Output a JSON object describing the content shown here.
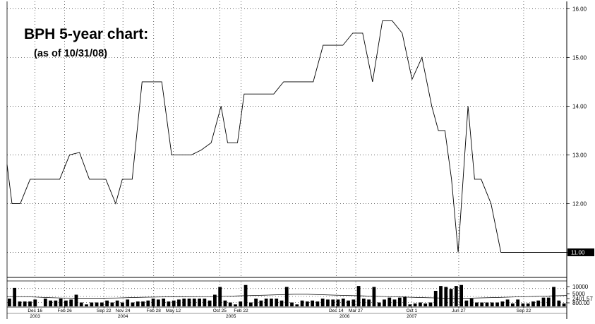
{
  "chart_data": {
    "type": "line",
    "title": "BPH 5-year chart:",
    "subtitle": "(as of 10/31/08)",
    "price": {
      "ylim": [
        10.5,
        16.15
      ],
      "y_ticks": [
        "16.00",
        "15.00",
        "14.00",
        "13.00",
        "12.00",
        "11.00"
      ],
      "last_label": "11.00",
      "x": [
        0,
        1.5,
        4,
        7,
        10,
        13,
        16,
        19,
        22,
        25,
        28,
        30,
        33,
        35,
        38,
        41,
        44,
        47,
        50,
        53,
        56,
        59,
        62,
        65,
        67,
        70,
        72,
        75,
        78,
        81,
        84,
        87,
        90,
        93,
        96,
        99,
        102,
        105,
        108,
        111,
        114,
        117,
        120,
        123,
        126,
        129,
        131,
        133,
        135,
        137,
        140,
        142,
        144,
        147,
        150,
        152,
        154,
        156,
        158,
        160,
        162,
        164,
        166,
        168,
        170
      ],
      "values": [
        12.8,
        12.0,
        12.0,
        12.5,
        12.5,
        12.5,
        12.5,
        13.0,
        13.05,
        12.5,
        12.5,
        12.5,
        12.0,
        12.5,
        12.5,
        14.5,
        14.5,
        14.5,
        13.0,
        13.0,
        13.0,
        13.1,
        13.25,
        14.0,
        13.25,
        13.25,
        14.25,
        14.25,
        14.25,
        14.25,
        14.5,
        14.5,
        14.5,
        14.5,
        15.25,
        15.25,
        15.25,
        15.5,
        15.5,
        14.5,
        15.75,
        15.75,
        15.5,
        14.55,
        15.0,
        14.0,
        13.5,
        13.5,
        12.5,
        11.0,
        14.0,
        12.5,
        12.5,
        12.0,
        11.0,
        11.0,
        11.0,
        11.0,
        11.0,
        11.0,
        11.0,
        11.0,
        11.0,
        11.0,
        11.0
      ],
      "x_max": 170
    },
    "volume": {
      "y_ticks": [
        "10000",
        "5000",
        "2401.57",
        "800.00"
      ],
      "bars": [
        400,
        950,
        250,
        250,
        250,
        350,
        0,
        400,
        300,
        300,
        400,
        300,
        350,
        600,
        200,
        100,
        200,
        200,
        200,
        300,
        200,
        300,
        200,
        350,
        200,
        250,
        250,
        300,
        400,
        350,
        400,
        250,
        300,
        350,
        400,
        400,
        400,
        400,
        400,
        300,
        600,
        1000,
        300,
        200,
        100,
        250,
        1100,
        200,
        400,
        300,
        400,
        400,
        400,
        300,
        1000,
        200,
        100,
        300,
        250,
        300,
        250,
        400,
        350,
        350,
        350,
        400,
        300,
        350,
        1050,
        400,
        350,
        1000,
        200,
        350,
        450,
        350,
        450,
        500,
        100,
        150,
        200,
        150,
        200,
        800,
        1050,
        1000,
        900,
        1050,
        1100,
        300,
        400,
        200,
        200,
        200,
        200,
        200,
        250,
        350,
        150,
        350,
        150,
        150,
        250,
        300,
        450,
        450,
        1000,
        300,
        150
      ],
      "ma": [
        500,
        500,
        480,
        450,
        430,
        420,
        420,
        420,
        430,
        450,
        470,
        480,
        490,
        490,
        500,
        500,
        520,
        540,
        560,
        580,
        600,
        620,
        620,
        600,
        580,
        560,
        540,
        520,
        500,
        480,
        460,
        440,
        420,
        400,
        420,
        440,
        460,
        480,
        500,
        520,
        540,
        560
      ]
    },
    "x_tick_labels": [
      {
        "label": "Dec 16",
        "t": 0.05
      },
      {
        "label": "Feb 26",
        "t": 0.103
      },
      {
        "label": "Sep 22",
        "t": 0.173
      },
      {
        "label": "Nov 24",
        "t": 0.207
      },
      {
        "label": "Feb 28",
        "t": 0.262
      },
      {
        "label": "May 12",
        "t": 0.297
      },
      {
        "label": "Oct 25",
        "t": 0.38
      },
      {
        "label": "Feb 22",
        "t": 0.418
      },
      {
        "label": "Dec 14",
        "t": 0.588
      },
      {
        "label": "Mar 27",
        "t": 0.623
      },
      {
        "label": "Oct 1",
        "t": 0.723
      },
      {
        "label": "Jun 27",
        "t": 0.807
      },
      {
        "label": "Sep 22",
        "t": 0.923
      }
    ],
    "year_labels": [
      {
        "label": "2003",
        "t": 0.05
      },
      {
        "label": "2004",
        "t": 0.207
      },
      {
        "label": "2005",
        "t": 0.4
      },
      {
        "label": "2006",
        "t": 0.603
      },
      {
        "label": "2007",
        "t": 0.723
      }
    ],
    "grid": true,
    "colors": {
      "line": "#000000",
      "label_bg": "#000000",
      "label_text": "#ffffff"
    }
  }
}
